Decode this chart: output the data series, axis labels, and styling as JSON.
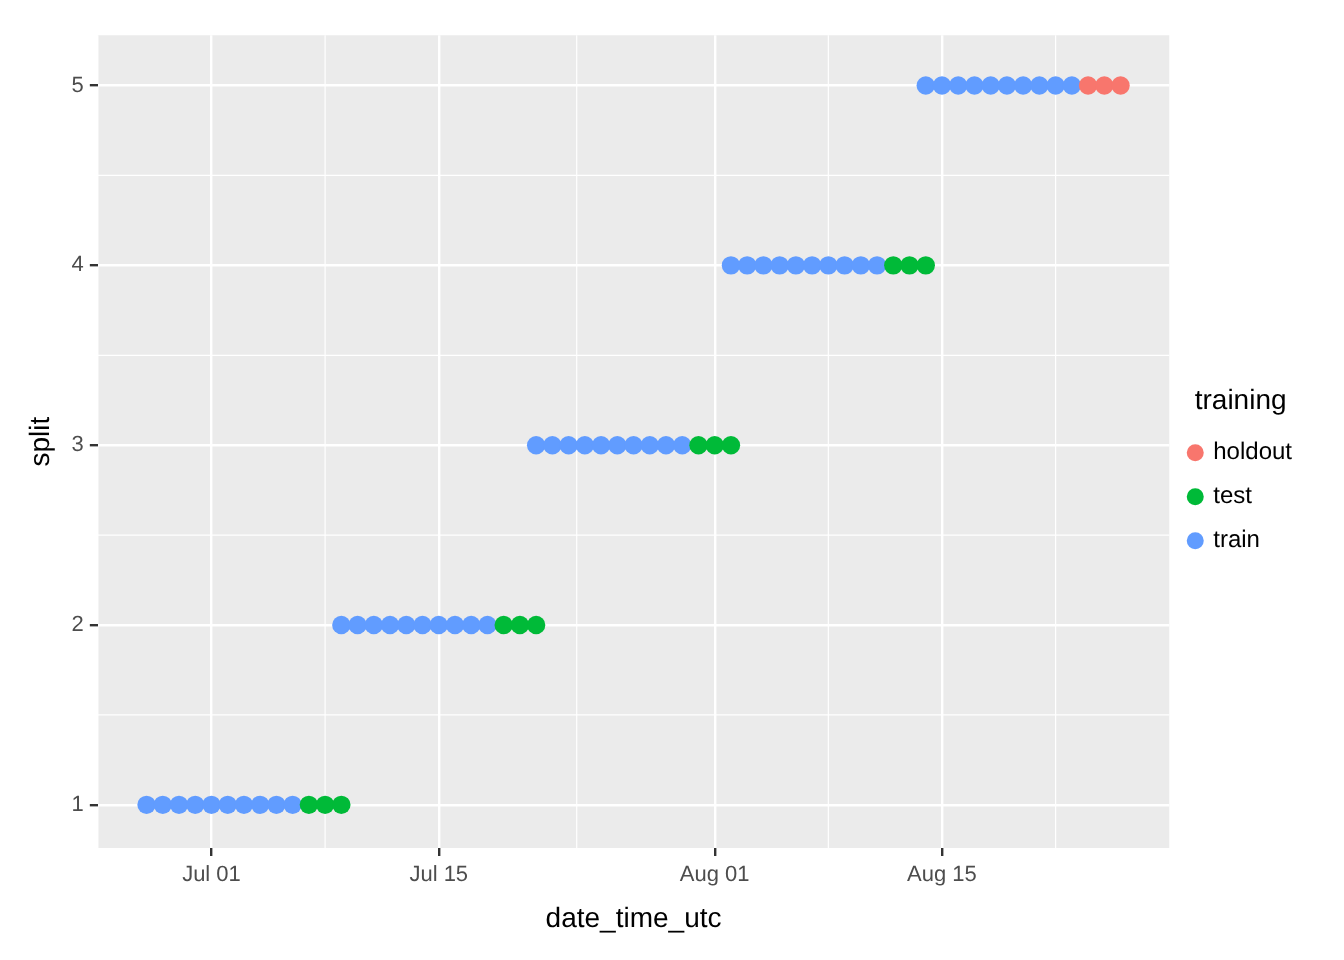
{
  "chart_data": {
    "type": "scatter",
    "xlabel": "date_time_utc",
    "ylabel": "split",
    "legend_title": "training",
    "legend": "right",
    "grid": true,
    "marker": "circle",
    "xlim": [
      "--06-24",
      "--08-29"
    ],
    "xticks": [
      {
        "value": "--07-01",
        "label": "Jul 01"
      },
      {
        "value": "--07-15",
        "label": "Jul 15"
      },
      {
        "value": "--08-01",
        "label": "Aug 01"
      },
      {
        "value": "--08-15",
        "label": "Aug 15"
      }
    ],
    "ylim": [
      0.76,
      5.28
    ],
    "yticks": [
      1,
      2,
      3,
      4,
      5
    ],
    "series": [
      {
        "name": "holdout",
        "color": "#f8766d",
        "x": [
          "--08-24",
          "--08-25",
          "--08-26"
        ],
        "values": [
          5,
          5,
          5
        ]
      },
      {
        "name": "test",
        "color": "#00ba38",
        "x": [
          "--07-07",
          "--07-08",
          "--07-09",
          "--07-19",
          "--07-20",
          "--07-21",
          "--07-31",
          "--08-01",
          "--08-02",
          "--08-12",
          "--08-13",
          "--08-14"
        ],
        "values": [
          1,
          1,
          1,
          2,
          2,
          2,
          3,
          3,
          3,
          4,
          4,
          4
        ]
      },
      {
        "name": "train",
        "color": "#619cff",
        "x": [
          "--06-27",
          "--06-28",
          "--06-29",
          "--06-30",
          "--07-01",
          "--07-02",
          "--07-03",
          "--07-04",
          "--07-05",
          "--07-06",
          "--07-09",
          "--07-10",
          "--07-11",
          "--07-12",
          "--07-13",
          "--07-14",
          "--07-15",
          "--07-16",
          "--07-17",
          "--07-18",
          "--07-21",
          "--07-22",
          "--07-23",
          "--07-24",
          "--07-25",
          "--07-26",
          "--07-27",
          "--07-28",
          "--07-29",
          "--07-30",
          "--08-02",
          "--08-03",
          "--08-04",
          "--08-05",
          "--08-06",
          "--08-07",
          "--08-08",
          "--08-09",
          "--08-10",
          "--08-11",
          "--08-14",
          "--08-15",
          "--08-16",
          "--08-17",
          "--08-18",
          "--08-19",
          "--08-20",
          "--08-21",
          "--08-22",
          "--08-23"
        ],
        "values": [
          1,
          1,
          1,
          1,
          1,
          1,
          1,
          1,
          1,
          1,
          2,
          2,
          2,
          2,
          2,
          2,
          2,
          2,
          2,
          2,
          3,
          3,
          3,
          3,
          3,
          3,
          3,
          3,
          3,
          3,
          4,
          4,
          4,
          4,
          4,
          4,
          4,
          4,
          4,
          4,
          5,
          5,
          5,
          5,
          5,
          5,
          5,
          5,
          5,
          5
        ]
      }
    ]
  }
}
